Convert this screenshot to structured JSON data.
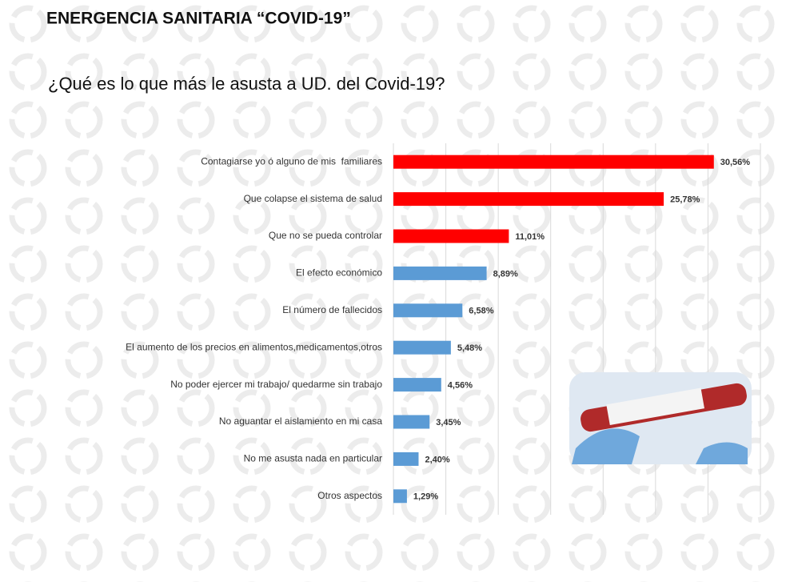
{
  "chart_data": {
    "type": "hbar",
    "title": "ENERGENCIA SANITARIA “COVID-19”",
    "subtitle": "¿Qué es lo que más le asusta a UD. del Covid-19?",
    "categories": [
      "Contagiarse yo ó alguno de mis  familiares",
      "Que colapse el sistema de salud",
      "Que no se pueda controlar",
      "El efecto económico",
      "El número de fallecidos",
      "El aumento de los precios en alimentos,medicamentos,otros",
      "No poder ejercer mi trabajo/ quedarme sin trabajo",
      "No aguantar el aislamiento en mi casa",
      "No me asusta nada en particular",
      "Otros aspectos"
    ],
    "values": [
      30.56,
      25.78,
      11.01,
      8.89,
      6.58,
      5.48,
      4.56,
      3.45,
      2.4,
      1.29
    ],
    "value_labels": [
      "30,56%",
      "25,78%",
      "11,01%",
      "8,89%",
      "6,58%",
      "5,48%",
      "4,56%",
      "3,45%",
      "2,40%",
      "1,29%"
    ],
    "colors": [
      "#ff0000",
      "#ff0000",
      "#ff0000",
      "#5b9bd5",
      "#5b9bd5",
      "#5b9bd5",
      "#5b9bd5",
      "#5b9bd5",
      "#5b9bd5",
      "#5b9bd5"
    ],
    "xlim": [
      0,
      35
    ],
    "grid_lines": [
      0,
      5,
      10,
      15,
      20,
      25,
      30,
      35
    ],
    "grid": true
  }
}
